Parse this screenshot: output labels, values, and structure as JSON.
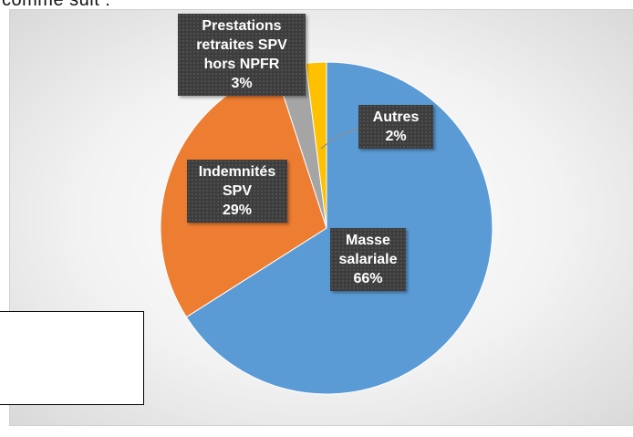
{
  "intro": "comme suit :",
  "chart_data": {
    "type": "pie",
    "categories": [
      "Masse salariale",
      "Indemnités SPV",
      "Prestations retraites SPV hors NPFR",
      "Autres"
    ],
    "values": [
      66,
      29,
      3,
      2
    ],
    "value_labels": [
      "66%",
      "29%",
      "3%",
      "2%"
    ],
    "colors": [
      "#5b9bd5",
      "#ed7d31",
      "#a5a5a5",
      "#ffc000"
    ]
  }
}
